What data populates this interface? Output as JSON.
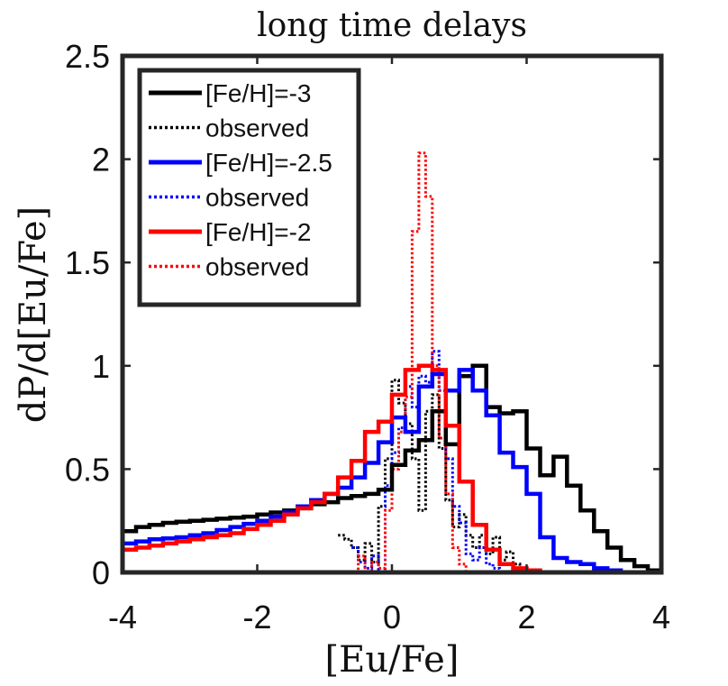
{
  "chart_data": {
    "type": "line",
    "title": "long time delays",
    "xlabel": "[Eu/Fe]",
    "ylabel": "dP/d[Eu/Fe]",
    "xlim": [
      -4,
      4
    ],
    "ylim": [
      0,
      2.5
    ],
    "xticks": [
      -4,
      -2,
      0,
      2,
      4
    ],
    "yticks": [
      0,
      0.5,
      1,
      1.5,
      2,
      2.5
    ],
    "xtick_labels": [
      "-4",
      "-2",
      "0",
      "2",
      "4"
    ],
    "ytick_labels": [
      "0",
      "0.5",
      "1",
      "1.5",
      "2",
      "2.5"
    ],
    "grid": false,
    "legend_position": "top-left",
    "series": [
      {
        "name": "[Fe/H]=-3",
        "color": "#000000",
        "style": "solid",
        "points": [
          [
            -4,
            0.2
          ],
          [
            -3.8,
            0.22
          ],
          [
            -3.6,
            0.23
          ],
          [
            -3.4,
            0.24
          ],
          [
            -3.2,
            0.245
          ],
          [
            -3.0,
            0.25
          ],
          [
            -2.8,
            0.255
          ],
          [
            -2.6,
            0.26
          ],
          [
            -2.4,
            0.265
          ],
          [
            -2.2,
            0.27
          ],
          [
            -2.0,
            0.28
          ],
          [
            -1.8,
            0.29
          ],
          [
            -1.6,
            0.3
          ],
          [
            -1.4,
            0.31
          ],
          [
            -1.2,
            0.33
          ],
          [
            -1.0,
            0.34
          ],
          [
            -0.8,
            0.36
          ],
          [
            -0.6,
            0.37
          ],
          [
            -0.4,
            0.38
          ],
          [
            -0.2,
            0.4
          ],
          [
            0.0,
            0.52
          ],
          [
            0.2,
            0.59
          ],
          [
            0.4,
            0.64
          ],
          [
            0.6,
            0.78
          ],
          [
            0.8,
            0.62
          ],
          [
            1.0,
            0.95
          ],
          [
            1.2,
            1.0
          ],
          [
            1.4,
            0.8
          ],
          [
            1.6,
            0.77
          ],
          [
            1.8,
            0.78
          ],
          [
            2.0,
            0.6
          ],
          [
            2.2,
            0.47
          ],
          [
            2.4,
            0.56
          ],
          [
            2.6,
            0.42
          ],
          [
            2.8,
            0.3
          ],
          [
            3.0,
            0.2
          ],
          [
            3.2,
            0.12
          ],
          [
            3.4,
            0.06
          ],
          [
            3.6,
            0.03
          ],
          [
            3.8,
            0.01
          ],
          [
            4.0,
            0.0
          ]
        ]
      },
      {
        "name": "observed",
        "color": "#000000",
        "style": "dotted",
        "points": [
          [
            -0.8,
            0.18
          ],
          [
            -0.7,
            0.16
          ],
          [
            -0.6,
            0.12
          ],
          [
            -0.5,
            0.06
          ],
          [
            -0.4,
            0.14
          ],
          [
            -0.3,
            0.05
          ],
          [
            -0.2,
            0.32
          ],
          [
            -0.1,
            0.55
          ],
          [
            0.0,
            0.93
          ],
          [
            0.1,
            0.82
          ],
          [
            0.2,
            0.72
          ],
          [
            0.3,
            0.55
          ],
          [
            0.4,
            0.3
          ],
          [
            0.5,
            0.78
          ],
          [
            0.6,
            0.86
          ],
          [
            0.7,
            0.6
          ],
          [
            0.8,
            0.35
          ],
          [
            0.9,
            0.22
          ],
          [
            1.0,
            0.28
          ],
          [
            1.1,
            0.18
          ],
          [
            1.2,
            0.12
          ],
          [
            1.3,
            0.18
          ],
          [
            1.4,
            0.09
          ],
          [
            1.5,
            0.17
          ],
          [
            1.6,
            0.06
          ],
          [
            1.7,
            0.1
          ],
          [
            1.8,
            0.04
          ],
          [
            1.9,
            0.02
          ],
          [
            2.0,
            0.0
          ]
        ]
      },
      {
        "name": "[Fe/H]=-2.5",
        "color": "#0000ff",
        "style": "solid",
        "points": [
          [
            -4,
            0.14
          ],
          [
            -3.8,
            0.15
          ],
          [
            -3.6,
            0.16
          ],
          [
            -3.4,
            0.165
          ],
          [
            -3.2,
            0.17
          ],
          [
            -3.0,
            0.18
          ],
          [
            -2.8,
            0.19
          ],
          [
            -2.6,
            0.205
          ],
          [
            -2.4,
            0.22
          ],
          [
            -2.2,
            0.235
          ],
          [
            -2.0,
            0.25
          ],
          [
            -1.8,
            0.27
          ],
          [
            -1.6,
            0.29
          ],
          [
            -1.4,
            0.32
          ],
          [
            -1.2,
            0.35
          ],
          [
            -1.0,
            0.38
          ],
          [
            -0.8,
            0.41
          ],
          [
            -0.6,
            0.46
          ],
          [
            -0.4,
            0.53
          ],
          [
            -0.2,
            0.63
          ],
          [
            0.0,
            0.75
          ],
          [
            0.2,
            0.68
          ],
          [
            0.4,
            0.9
          ],
          [
            0.6,
            0.96
          ],
          [
            0.8,
            0.88
          ],
          [
            1.0,
            0.98
          ],
          [
            1.2,
            0.88
          ],
          [
            1.4,
            0.76
          ],
          [
            1.6,
            0.58
          ],
          [
            1.8,
            0.51
          ],
          [
            2.0,
            0.38
          ],
          [
            2.2,
            0.17
          ],
          [
            2.4,
            0.07
          ],
          [
            2.6,
            0.05
          ],
          [
            2.8,
            0.04
          ],
          [
            3.0,
            0.02
          ],
          [
            3.2,
            0.01
          ],
          [
            3.4,
            0.0
          ],
          [
            4.0,
            0.0
          ]
        ]
      },
      {
        "name": "observed",
        "color": "#0000ff",
        "style": "dotted",
        "points": [
          [
            -0.6,
            0.12
          ],
          [
            -0.5,
            0.05
          ],
          [
            -0.4,
            0.02
          ],
          [
            -0.3,
            0.08
          ],
          [
            -0.2,
            0.0
          ],
          [
            -0.1,
            0.42
          ],
          [
            0.0,
            0.58
          ],
          [
            0.1,
            0.7
          ],
          [
            0.2,
            0.9
          ],
          [
            0.3,
            0.8
          ],
          [
            0.4,
            0.95
          ],
          [
            0.5,
            0.92
          ],
          [
            0.6,
            1.07
          ],
          [
            0.7,
            0.88
          ],
          [
            0.8,
            0.55
          ],
          [
            0.9,
            0.32
          ],
          [
            1.0,
            0.24
          ],
          [
            1.1,
            0.09
          ],
          [
            1.2,
            0.06
          ],
          [
            1.3,
            0.12
          ],
          [
            1.4,
            0.04
          ],
          [
            1.5,
            0.02
          ],
          [
            1.6,
            0.0
          ]
        ]
      },
      {
        "name": "[Fe/H]=-2",
        "color": "#ff0000",
        "style": "solid",
        "points": [
          [
            -4,
            0.11
          ],
          [
            -3.8,
            0.12
          ],
          [
            -3.6,
            0.13
          ],
          [
            -3.4,
            0.14
          ],
          [
            -3.2,
            0.15
          ],
          [
            -3.0,
            0.16
          ],
          [
            -2.8,
            0.17
          ],
          [
            -2.6,
            0.18
          ],
          [
            -2.4,
            0.19
          ],
          [
            -2.2,
            0.21
          ],
          [
            -2.0,
            0.23
          ],
          [
            -1.8,
            0.25
          ],
          [
            -1.6,
            0.28
          ],
          [
            -1.4,
            0.31
          ],
          [
            -1.2,
            0.34
          ],
          [
            -1.0,
            0.38
          ],
          [
            -0.8,
            0.46
          ],
          [
            -0.6,
            0.54
          ],
          [
            -0.4,
            0.68
          ],
          [
            -0.2,
            0.73
          ],
          [
            0.0,
            0.86
          ],
          [
            0.2,
            0.98
          ],
          [
            0.4,
            1.0
          ],
          [
            0.6,
            0.98
          ],
          [
            0.8,
            0.71
          ],
          [
            1.0,
            0.44
          ],
          [
            1.2,
            0.23
          ],
          [
            1.4,
            0.11
          ],
          [
            1.6,
            0.04
          ],
          [
            1.8,
            0.02
          ],
          [
            2.0,
            0.01
          ],
          [
            2.2,
            0.0
          ],
          [
            4.0,
            0.0
          ]
        ]
      },
      {
        "name": "observed",
        "color": "#ff0000",
        "style": "dotted",
        "points": [
          [
            -2,
            0.0
          ],
          [
            -0.6,
            0.0
          ],
          [
            -0.5,
            0.08
          ],
          [
            -0.4,
            0.0
          ],
          [
            -0.3,
            0.05
          ],
          [
            -0.2,
            0.02
          ],
          [
            -0.1,
            0.3
          ],
          [
            0.0,
            0.5
          ],
          [
            0.1,
            0.68
          ],
          [
            0.2,
            0.85
          ],
          [
            0.3,
            1.65
          ],
          [
            0.4,
            2.03
          ],
          [
            0.5,
            1.82
          ],
          [
            0.6,
            1.0
          ],
          [
            0.7,
            0.65
          ],
          [
            0.8,
            0.38
          ],
          [
            0.9,
            0.12
          ],
          [
            1.0,
            0.04
          ],
          [
            1.1,
            0.0
          ],
          [
            1.2,
            0.0
          ]
        ]
      }
    ]
  }
}
